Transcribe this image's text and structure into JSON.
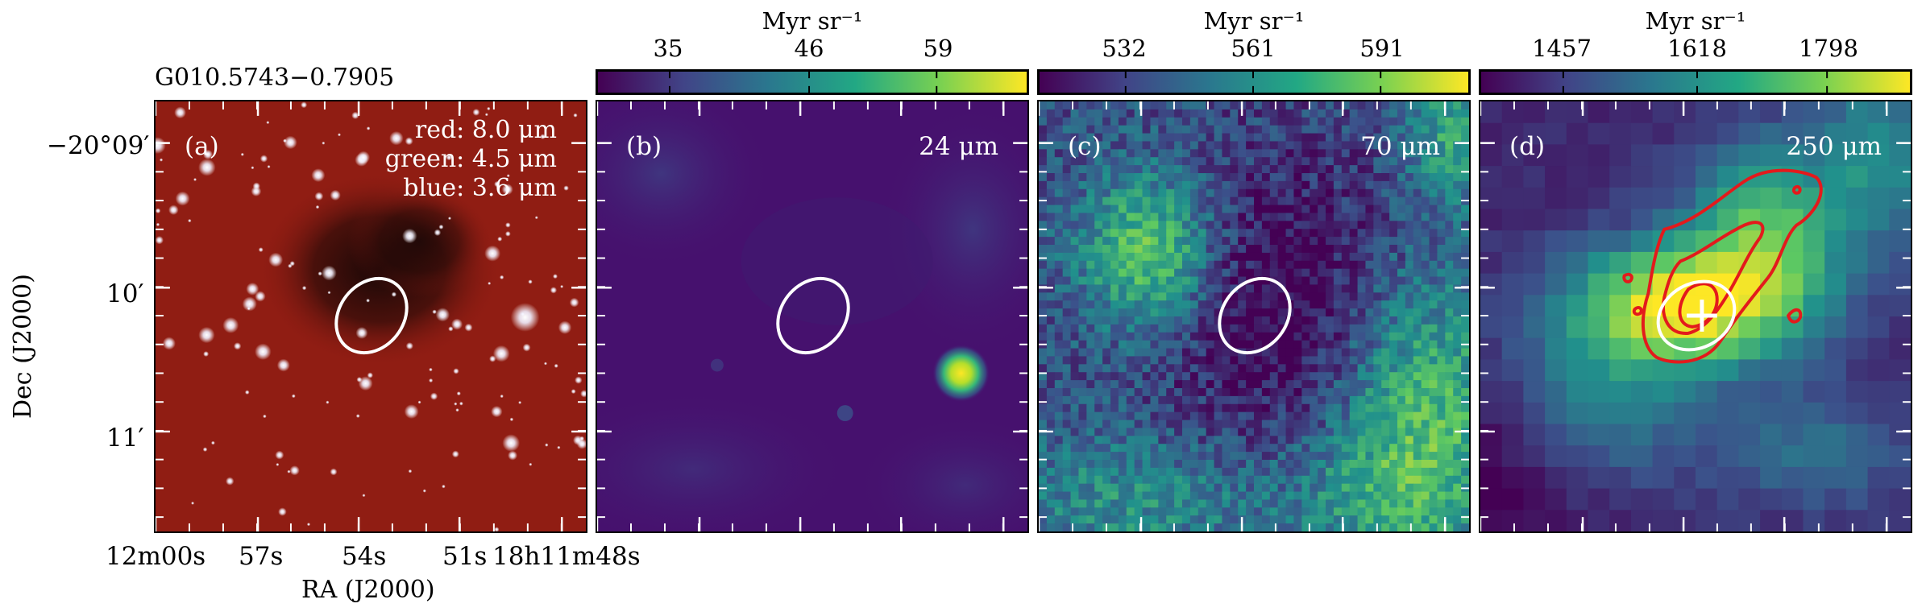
{
  "figure": {
    "source_name": "G010.5743−0.7905",
    "y_axis_label": "Dec (J2000)",
    "x_axis_label": "RA (J2000)",
    "dec_ticks": [
      "−20°09′",
      "10′",
      "11′"
    ],
    "ra_ticks": [
      "12m00s",
      "57s",
      "54s",
      "51s",
      "18h11m48s"
    ]
  },
  "panels": [
    {
      "id": "a",
      "label": "(a)",
      "legend": [
        "red: 8.0 μm",
        "green: 4.5 μm",
        "blue: 3.6 μm"
      ],
      "colors": {
        "background": "#8a1a12",
        "dark_cloud": "#1a0a08",
        "ellipse": "#ffffff"
      }
    },
    {
      "id": "b",
      "label": "(b)",
      "wavelength": "24 μm",
      "colorbar": {
        "title": "Myr sr⁻¹",
        "ticks": [
          "35",
          "46",
          "59"
        ]
      },
      "colors": {
        "background": "#46116e",
        "source": "#fde725",
        "ellipse": "#ffffff"
      }
    },
    {
      "id": "c",
      "label": "(c)",
      "wavelength": "70 μm",
      "colorbar": {
        "title": "Myr sr⁻¹",
        "ticks": [
          "532",
          "561",
          "591"
        ]
      },
      "colors": {
        "background": "#3b528b",
        "ellipse": "#ffffff"
      }
    },
    {
      "id": "d",
      "label": "(d)",
      "wavelength": "250 μm",
      "colorbar": {
        "title": "Myr sr⁻¹",
        "ticks": [
          "1457",
          "1618",
          "1798"
        ]
      },
      "colors": {
        "background": "#404688",
        "contour": "#e31a1c",
        "ellipse": "#ffffff",
        "marker": "#ffffff"
      }
    }
  ],
  "colormap": [
    "#440154",
    "#3b528b",
    "#21918c",
    "#5ec962",
    "#fde725"
  ]
}
